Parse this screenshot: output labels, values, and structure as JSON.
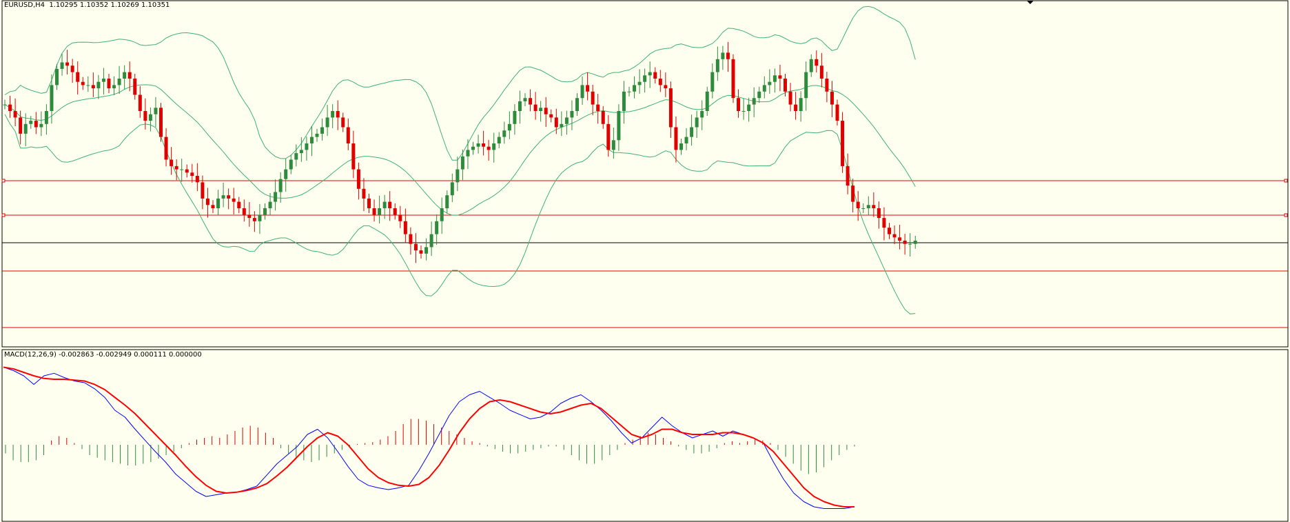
{
  "main_panel": {
    "symbol": "EURUSD",
    "timeframe": "H4",
    "ohlc": "1.10295 1.10352 1.10269 1.10351"
  },
  "macd_panel": {
    "label": "MACD(12,26,9) -0.002863 -0.002949 0.000111 0.000000"
  },
  "colors": {
    "background": "#fffff0",
    "bull_candle": "#2e8b3e",
    "bear_candle": "#e00000",
    "bollinger": "#3cb371",
    "horizontal_line": "#e00000",
    "price_line": "#000000",
    "macd_main": "#0000ff",
    "macd_signal": "#ff0000",
    "hist_positive": "#e00000",
    "hist_negative": "#2e8b3e"
  },
  "chart_data": [
    {
      "type": "candlestick",
      "title": "EURUSD,H4 1.10295 1.10352 1.10269 1.10351",
      "note": "values in screen-relative price units (0 = bottom of price pane, 100 = top)",
      "closes": [
        72,
        70,
        68,
        63,
        66,
        67,
        65,
        66,
        70,
        78,
        83,
        85,
        84,
        82,
        79,
        78,
        78,
        77,
        79,
        80,
        77,
        78,
        80,
        82,
        80,
        75,
        70,
        67,
        69,
        71,
        62,
        55,
        53,
        52,
        52,
        51,
        50,
        48,
        43,
        41,
        40,
        43,
        44,
        43,
        42,
        40,
        38,
        37,
        36,
        38,
        40,
        42,
        45,
        49,
        52,
        55,
        57,
        58,
        60,
        62,
        63,
        65,
        68,
        70,
        68,
        65,
        60,
        52,
        46,
        43,
        40,
        38,
        40,
        42,
        40,
        38,
        36,
        32,
        29,
        27,
        26,
        28,
        32,
        36,
        40,
        44,
        48,
        52,
        56,
        58,
        59,
        60,
        59,
        58,
        60,
        62,
        64,
        66,
        70,
        73,
        74,
        72,
        70,
        71,
        69,
        68,
        65,
        66,
        68,
        70,
        74,
        78,
        76,
        72,
        70,
        66,
        58,
        61,
        70,
        76,
        76,
        78,
        79,
        81,
        82,
        80,
        78,
        77,
        65,
        58,
        60,
        62,
        65,
        68,
        70,
        76,
        82,
        86,
        88,
        86,
        74,
        70,
        70,
        72,
        74,
        76,
        78,
        79,
        81,
        80,
        76,
        72,
        70,
        74,
        82,
        86,
        84,
        80,
        76,
        72,
        67,
        53,
        47,
        42,
        40,
        40,
        41,
        40,
        37,
        34,
        32,
        31,
        30,
        29,
        29,
        30
      ]
    },
    {
      "type": "line",
      "title": "MACD(12,26,9) -0.002863 -0.002949 0.000111 0.000000",
      "series": [
        {
          "values": [
            0.9,
            0.86,
            0.8,
            0.7,
            0.8,
            0.83,
            0.78,
            0.74,
            0.72,
            0.65,
            0.55,
            0.4,
            0.32,
            0.18,
            0.05,
            -0.08,
            -0.2,
            -0.34,
            -0.44,
            -0.54,
            -0.6,
            -0.58,
            -0.56,
            -0.55,
            -0.52,
            -0.48,
            -0.35,
            -0.22,
            -0.12,
            -0.02,
            0.12,
            0.18,
            0.08,
            -0.08,
            -0.25,
            -0.4,
            -0.47,
            -0.5,
            -0.52,
            -0.5,
            -0.47,
            -0.3,
            -0.1,
            0.12,
            0.34,
            0.5,
            0.58,
            0.62,
            0.55,
            0.48,
            0.4,
            0.35,
            0.3,
            0.32,
            0.38,
            0.48,
            0.54,
            0.58,
            0.5,
            0.4,
            0.28,
            0.14,
            0.02,
            0.08,
            0.2,
            0.32,
            0.22,
            0.14,
            0.08,
            0.12,
            0.16,
            0.1,
            0.16,
            0.12,
            0.08,
            0.02,
            -0.2,
            -0.4,
            -0.56,
            -0.66,
            -0.72,
            -0.74,
            -0.74,
            -0.74,
            -0.72
          ]
        },
        {
          "values": [
            0.9,
            0.88,
            0.84,
            0.8,
            0.77,
            0.76,
            0.76,
            0.75,
            0.74,
            0.7,
            0.64,
            0.55,
            0.46,
            0.36,
            0.24,
            0.12,
            0.0,
            -0.12,
            -0.25,
            -0.37,
            -0.47,
            -0.54,
            -0.56,
            -0.55,
            -0.53,
            -0.5,
            -0.45,
            -0.36,
            -0.26,
            -0.14,
            -0.02,
            0.08,
            0.14,
            0.1,
            0.0,
            -0.14,
            -0.28,
            -0.38,
            -0.44,
            -0.47,
            -0.48,
            -0.46,
            -0.38,
            -0.24,
            -0.06,
            0.14,
            0.3,
            0.42,
            0.5,
            0.52,
            0.5,
            0.46,
            0.42,
            0.38,
            0.36,
            0.38,
            0.42,
            0.46,
            0.48,
            0.42,
            0.32,
            0.22,
            0.12,
            0.08,
            0.12,
            0.18,
            0.18,
            0.14,
            0.12,
            0.12,
            0.12,
            0.14,
            0.14,
            0.12,
            0.08,
            0.02,
            -0.08,
            -0.22,
            -0.36,
            -0.5,
            -0.6,
            -0.66,
            -0.7,
            -0.72,
            -0.72
          ]
        }
      ],
      "histogram": [
        -0.1,
        -0.18,
        -0.2,
        -0.2,
        -0.18,
        -0.12,
        0.05,
        0.1,
        0.08,
        0.02,
        -0.05,
        -0.12,
        -0.15,
        -0.18,
        -0.2,
        -0.22,
        -0.24,
        -0.24,
        -0.22,
        -0.2,
        -0.16,
        -0.12,
        -0.08,
        -0.04,
        0.02,
        0.06,
        0.08,
        0.1,
        0.08,
        0.12,
        0.16,
        0.2,
        0.22,
        0.2,
        0.14,
        0.08,
        -0.04,
        -0.1,
        -0.14,
        -0.18,
        -0.2,
        -0.18,
        -0.14,
        -0.1,
        -0.06,
        -0.02,
        0.01,
        0.02,
        0.03,
        0.06,
        0.1,
        0.16,
        0.24,
        0.3,
        0.3,
        0.28,
        0.24,
        0.2,
        0.16,
        0.12,
        0.08,
        0.04,
        0.02,
        -0.02,
        -0.05,
        -0.08,
        -0.1,
        -0.1,
        -0.08,
        -0.06,
        -0.04,
        -0.02,
        -0.02,
        -0.06,
        -0.12,
        -0.18,
        -0.22,
        -0.22,
        -0.18,
        -0.12,
        -0.06,
        0.02,
        0.06,
        0.1,
        0.14,
        0.12,
        0.08,
        0.04,
        -0.02,
        -0.06,
        -0.1,
        -0.1,
        -0.08,
        -0.04,
        0.02,
        0.04,
        0.02,
        0.04,
        0.06,
        0.05,
        0.02,
        -0.06,
        -0.14,
        -0.22,
        -0.3,
        -0.34,
        -0.32,
        -0.26,
        -0.18,
        -0.12,
        -0.06,
        -0.02
      ]
    }
  ]
}
